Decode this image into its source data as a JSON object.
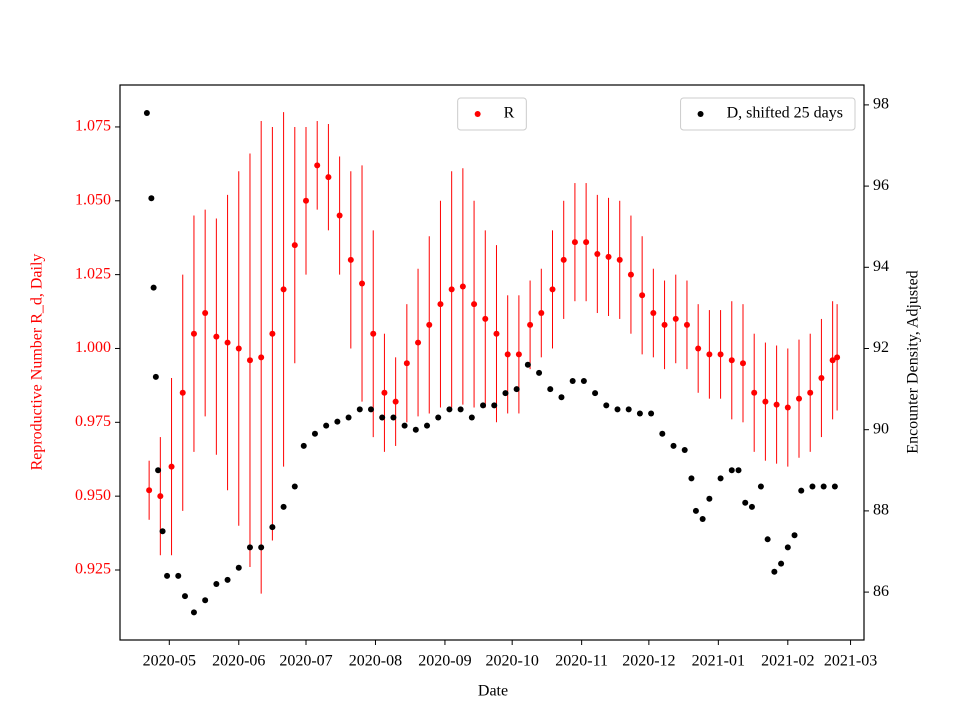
{
  "chart_data": {
    "type": "scatter",
    "xlabel": "Date",
    "ylabel": "Reproductive Number R_d, Daily",
    "y2label": "Encounter Density, Adjusted",
    "xlim": [
      "2020-04-09",
      "2021-03-07"
    ],
    "xticks": [
      {
        "value": "2020-05-01",
        "label": "2020-05"
      },
      {
        "value": "2020-06-01",
        "label": "2020-06"
      },
      {
        "value": "2020-07-01",
        "label": "2020-07"
      },
      {
        "value": "2020-08-01",
        "label": "2020-08"
      },
      {
        "value": "2020-09-01",
        "label": "2020-09"
      },
      {
        "value": "2020-10-01",
        "label": "2020-10"
      },
      {
        "value": "2020-11-01",
        "label": "2020-11"
      },
      {
        "value": "2020-12-01",
        "label": "2020-12"
      },
      {
        "value": "2021-01-01",
        "label": "2021-01"
      },
      {
        "value": "2021-02-01",
        "label": "2021-02"
      },
      {
        "value": "2021-03-01",
        "label": "2021-03"
      }
    ],
    "ylim": [
      0.9013,
      1.0892
    ],
    "yticks": [
      0.925,
      {
        "value": 0.95,
        "label": "0.950"
      },
      0.975,
      {
        "value": 1.0,
        "label": "1.000"
      },
      1.025,
      {
        "value": 1.05,
        "label": "1.050"
      },
      1.075
    ],
    "ytick_color": "#ff0000",
    "y2lim": [
      84.82,
      98.49
    ],
    "y2ticks": [
      86,
      88,
      90,
      92,
      94,
      96,
      98
    ],
    "series": [
      {
        "name": "R",
        "color": "#ff0000",
        "axis": "y",
        "legend": "upper center",
        "x": [
          "2020-04-22",
          "2020-04-27",
          "2020-05-02",
          "2020-05-07",
          "2020-05-12",
          "2020-05-17",
          "2020-05-22",
          "2020-05-27",
          "2020-06-01",
          "2020-06-06",
          "2020-06-11",
          "2020-06-16",
          "2020-06-21",
          "2020-06-26",
          "2020-07-01",
          "2020-07-06",
          "2020-07-11",
          "2020-07-16",
          "2020-07-21",
          "2020-07-26",
          "2020-07-31",
          "2020-08-05",
          "2020-08-10",
          "2020-08-15",
          "2020-08-20",
          "2020-08-25",
          "2020-08-30",
          "2020-09-04",
          "2020-09-09",
          "2020-09-14",
          "2020-09-19",
          "2020-09-24",
          "2020-09-29",
          "2020-10-04",
          "2020-10-09",
          "2020-10-14",
          "2020-10-19",
          "2020-10-24",
          "2020-10-29",
          "2020-11-03",
          "2020-11-08",
          "2020-11-13",
          "2020-11-18",
          "2020-11-23",
          "2020-11-28",
          "2020-12-03",
          "2020-12-08",
          "2020-12-13",
          "2020-12-18",
          "2020-12-23",
          "2020-12-28",
          "2021-01-02",
          "2021-01-07",
          "2021-01-12",
          "2021-01-17",
          "2021-01-22",
          "2021-01-27",
          "2021-02-01",
          "2021-02-06",
          "2021-02-11",
          "2021-02-16",
          "2021-02-21",
          "2021-02-23"
        ],
        "values": [
          0.952,
          0.95,
          0.96,
          0.985,
          1.005,
          1.012,
          1.004,
          1.002,
          1.0,
          0.996,
          0.997,
          1.005,
          1.02,
          1.035,
          1.05,
          1.062,
          1.058,
          1.045,
          1.03,
          1.022,
          1.005,
          0.985,
          0.982,
          0.995,
          1.002,
          1.008,
          1.015,
          1.02,
          1.021,
          1.015,
          1.01,
          1.005,
          0.998,
          0.998,
          1.008,
          1.012,
          1.02,
          1.03,
          1.036,
          1.036,
          1.032,
          1.031,
          1.03,
          1.025,
          1.018,
          1.012,
          1.008,
          1.01,
          1.008,
          1.0,
          0.998,
          0.998,
          0.996,
          0.995,
          0.985,
          0.982,
          0.981,
          0.98,
          0.983,
          0.985,
          0.99,
          0.996,
          0.997
        ],
        "errors": [
          0.01,
          0.02,
          0.03,
          0.04,
          0.04,
          0.035,
          0.04,
          0.05,
          0.06,
          0.07,
          0.08,
          0.07,
          0.06,
          0.04,
          0.025,
          0.015,
          0.018,
          0.02,
          0.03,
          0.04,
          0.035,
          0.02,
          0.015,
          0.02,
          0.025,
          0.03,
          0.035,
          0.04,
          0.04,
          0.035,
          0.03,
          0.03,
          0.02,
          0.02,
          0.015,
          0.015,
          0.02,
          0.02,
          0.02,
          0.02,
          0.02,
          0.02,
          0.02,
          0.02,
          0.02,
          0.015,
          0.015,
          0.015,
          0.015,
          0.015,
          0.015,
          0.015,
          0.02,
          0.02,
          0.02,
          0.02,
          0.02,
          0.02,
          0.02,
          0.02,
          0.02,
          0.02,
          0.018
        ]
      },
      {
        "name": "D, shifted 25 days",
        "color": "#000000",
        "axis": "y2",
        "legend": "upper right",
        "x": [
          "2020-04-21",
          "2020-04-23",
          "2020-04-24",
          "2020-04-25",
          "2020-04-26",
          "2020-04-28",
          "2020-04-30",
          "2020-05-05",
          "2020-05-08",
          "2020-05-12",
          "2020-05-17",
          "2020-05-22",
          "2020-05-27",
          "2020-06-01",
          "2020-06-06",
          "2020-06-11",
          "2020-06-16",
          "2020-06-21",
          "2020-06-26",
          "2020-06-30",
          "2020-07-05",
          "2020-07-10",
          "2020-07-15",
          "2020-07-20",
          "2020-07-25",
          "2020-07-30",
          "2020-08-04",
          "2020-08-09",
          "2020-08-14",
          "2020-08-19",
          "2020-08-24",
          "2020-08-29",
          "2020-09-03",
          "2020-09-08",
          "2020-09-13",
          "2020-09-18",
          "2020-09-23",
          "2020-09-28",
          "2020-10-03",
          "2020-10-08",
          "2020-10-13",
          "2020-10-18",
          "2020-10-23",
          "2020-10-28",
          "2020-11-02",
          "2020-11-07",
          "2020-11-12",
          "2020-11-17",
          "2020-11-22",
          "2020-11-27",
          "2020-12-02",
          "2020-12-07",
          "2020-12-12",
          "2020-12-17",
          "2020-12-20",
          "2020-12-22",
          "2020-12-25",
          "2020-12-28",
          "2021-01-02",
          "2021-01-07",
          "2021-01-10",
          "2021-01-13",
          "2021-01-16",
          "2021-01-20",
          "2021-01-23",
          "2021-01-26",
          "2021-01-29",
          "2021-02-01",
          "2021-02-04",
          "2021-02-07",
          "2021-02-12",
          "2021-02-17",
          "2021-02-22"
        ],
        "values": [
          97.8,
          95.7,
          93.5,
          91.3,
          89.0,
          87.5,
          86.4,
          86.4,
          85.9,
          85.5,
          85.8,
          86.2,
          86.3,
          86.6,
          87.1,
          87.1,
          87.6,
          88.1,
          88.6,
          89.6,
          89.9,
          90.1,
          90.2,
          90.3,
          90.5,
          90.5,
          90.3,
          90.3,
          90.1,
          90.0,
          90.1,
          90.3,
          90.5,
          90.5,
          90.3,
          90.6,
          90.6,
          90.9,
          91.0,
          91.6,
          91.4,
          91.0,
          90.8,
          91.2,
          91.2,
          90.9,
          90.6,
          90.5,
          90.5,
          90.4,
          90.4,
          89.9,
          89.6,
          89.5,
          88.8,
          88.0,
          87.8,
          88.3,
          88.8,
          89.0,
          89.0,
          88.2,
          88.1,
          88.6,
          87.3,
          86.5,
          86.7,
          87.1,
          87.4,
          88.5,
          88.6,
          88.6,
          88.6
        ]
      }
    ]
  }
}
